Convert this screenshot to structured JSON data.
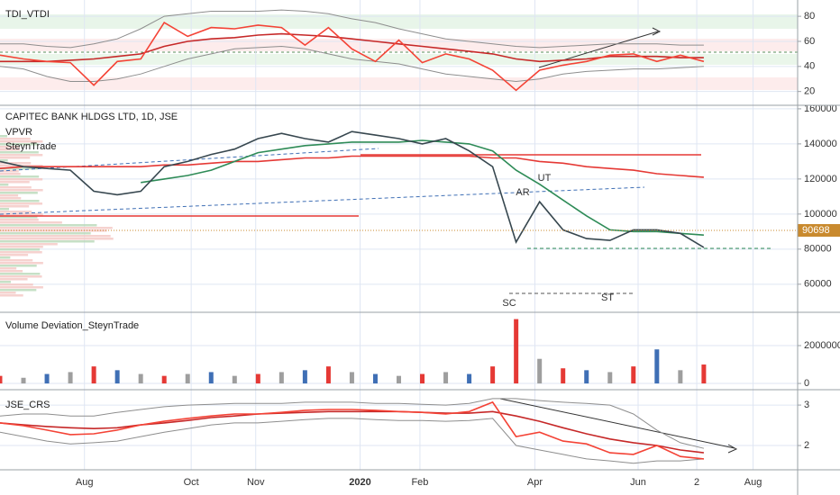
{
  "chart_data": [
    {
      "type": "line",
      "title": "TDI_VTDI",
      "ylim": [
        9,
        93
      ],
      "yticks": [
        20,
        40,
        60,
        80
      ],
      "series": [
        {
          "color": "#8e8e8e",
          "values": [
            58,
            58,
            56,
            55,
            58,
            62,
            70,
            80,
            82,
            84,
            84,
            84,
            85,
            84,
            82,
            78,
            75,
            70,
            66,
            62,
            60,
            58,
            56,
            55,
            56,
            57,
            58,
            58,
            58,
            57,
            57
          ]
        },
        {
          "color": "#8e8e8e",
          "values": [
            40,
            38,
            32,
            28,
            28,
            30,
            34,
            40,
            46,
            50,
            54,
            55,
            56,
            54,
            50,
            46,
            44,
            42,
            38,
            34,
            32,
            30,
            28,
            30,
            34,
            36,
            37,
            38,
            38,
            39,
            40
          ]
        },
        {
          "color": "#c62828",
          "values": [
            44,
            44,
            44,
            45,
            46,
            48,
            50,
            56,
            60,
            62,
            63,
            65,
            66,
            65,
            64,
            62,
            60,
            58,
            56,
            54,
            52,
            50,
            46,
            44,
            45,
            46,
            48,
            48,
            48,
            47,
            47
          ]
        },
        {
          "color": "#f44336",
          "values": [
            49,
            46,
            44,
            43,
            25,
            44,
            46,
            75,
            64,
            71,
            70,
            73,
            71,
            57,
            71,
            54,
            44,
            61,
            43,
            50,
            46,
            37,
            21,
            37,
            41,
            44,
            49,
            50,
            44,
            49,
            44
          ]
        }
      ]
    },
    {
      "type": "line",
      "title": "CAPITEC BANK HLDGS LTD, 1D, JSE",
      "indicators": [
        "VPVR",
        "SteynTrade"
      ],
      "annotations": [
        "AR",
        "UT",
        "SC",
        "ST"
      ],
      "last_price": 90698,
      "last_price_color": "#c98a2e",
      "ylim": [
        44000,
        162000
      ],
      "yticks": [
        60000,
        80000,
        100000,
        120000,
        140000,
        160000
      ],
      "series": [
        {
          "color": "#e53935",
          "values": [
            126000,
            127000,
            127000,
            127000,
            127000,
            127000,
            127000,
            128000,
            128000,
            129000,
            130000,
            130000,
            131000,
            132000,
            132000,
            133000,
            133000,
            133000,
            133000,
            133000,
            133000,
            132000,
            132000,
            130000,
            129000,
            127000,
            126000,
            125000,
            123000,
            122000,
            121000
          ]
        },
        {
          "color": "#2e8b57",
          "values": [
            null,
            null,
            null,
            null,
            null,
            null,
            118000,
            120000,
            122000,
            125000,
            130000,
            135000,
            137000,
            139000,
            140000,
            141000,
            141000,
            141000,
            142000,
            141000,
            140000,
            136000,
            125000,
            117000,
            108000,
            99000,
            91000,
            90000,
            90000,
            89000,
            88000
          ]
        },
        {
          "color": "#37474f",
          "values": [
            130000,
            127000,
            126000,
            125000,
            113000,
            111000,
            113000,
            127000,
            130000,
            134000,
            137000,
            143000,
            146000,
            143000,
            141000,
            147000,
            145000,
            143000,
            140000,
            143000,
            136000,
            127000,
            84000,
            107000,
            91000,
            86000,
            85000,
            91000,
            91000,
            89000,
            81000
          ]
        }
      ]
    },
    {
      "type": "bar",
      "title": "Volume Deviation_SteynTrade",
      "ylim": [
        -330000,
        3760000
      ],
      "yticks": [
        0,
        2000000
      ],
      "values": [
        400000,
        300000,
        500000,
        600000,
        900000,
        700000,
        500000,
        400000,
        500000,
        600000,
        400000,
        500000,
        600000,
        700000,
        900000,
        600000,
        500000,
        400000,
        500000,
        600000,
        500000,
        900000,
        3400000,
        1300000,
        800000,
        700000,
        600000,
        900000,
        1800000,
        700000,
        1000000
      ],
      "colors": [
        "#e53935",
        "#9e9e9e",
        "#3f6fb5",
        "#9e9e9e",
        "#e53935",
        "#3f6fb5",
        "#9e9e9e",
        "#e53935",
        "#9e9e9e",
        "#3f6fb5",
        "#9e9e9e",
        "#e53935",
        "#9e9e9e",
        "#3f6fb5",
        "#e53935",
        "#9e9e9e",
        "#3f6fb5",
        "#9e9e9e",
        "#e53935",
        "#9e9e9e",
        "#3f6fb5",
        "#e53935",
        "#e53935",
        "#9e9e9e",
        "#e53935",
        "#3f6fb5",
        "#9e9e9e",
        "#e53935",
        "#3f6fb5",
        "#9e9e9e",
        "#e53935"
      ]
    },
    {
      "type": "line",
      "title": "JSE_CRS",
      "ylim": [
        1.4,
        3.38
      ],
      "yticks": [
        2,
        3
      ],
      "xlim": [
        0,
        34
      ],
      "xticks": [
        {
          "value": 3.6,
          "label": "Aug"
        },
        {
          "value": 8.15,
          "label": "Oct"
        },
        {
          "value": 10.9,
          "label": "Nov"
        },
        {
          "value": 15.35,
          "label": "2020"
        },
        {
          "value": 17.9,
          "label": "Feb"
        },
        {
          "value": 22.8,
          "label": "Apr"
        },
        {
          "value": 27.2,
          "label": "Jun"
        },
        {
          "value": 29.7,
          "label": "2"
        },
        {
          "value": 32.1,
          "label": "Aug"
        }
      ],
      "series": [
        {
          "color": "#8e8e8e",
          "values": [
            2.73,
            2.78,
            2.78,
            2.73,
            2.73,
            2.82,
            2.89,
            2.96,
            3.0,
            3.02,
            3.04,
            3.04,
            3.04,
            3.07,
            3.07,
            3.07,
            3.04,
            3.04,
            3.02,
            3.0,
            3.04,
            3.16,
            3.16,
            3.11,
            3.07,
            3.04,
            3.0,
            2.78,
            2.38,
            2.07,
            1.93
          ]
        },
        {
          "color": "#8e8e8e",
          "values": [
            2.33,
            2.22,
            2.11,
            2.04,
            2.07,
            2.11,
            2.22,
            2.33,
            2.42,
            2.51,
            2.56,
            2.56,
            2.6,
            2.64,
            2.67,
            2.67,
            2.64,
            2.62,
            2.62,
            2.6,
            2.62,
            2.67,
            2.0,
            1.89,
            1.78,
            1.67,
            1.62,
            1.56,
            1.62,
            1.62,
            1.67
          ]
        },
        {
          "color": "#c62828",
          "values": [
            2.56,
            2.51,
            2.47,
            2.44,
            2.42,
            2.44,
            2.51,
            2.56,
            2.62,
            2.69,
            2.73,
            2.78,
            2.8,
            2.82,
            2.84,
            2.84,
            2.84,
            2.84,
            2.82,
            2.8,
            2.8,
            2.84,
            2.73,
            2.6,
            2.44,
            2.29,
            2.16,
            2.07,
            2.0,
            1.89,
            1.82
          ]
        },
        {
          "color": "#f44336",
          "values": [
            2.56,
            2.49,
            2.38,
            2.27,
            2.29,
            2.38,
            2.51,
            2.6,
            2.67,
            2.73,
            2.78,
            2.78,
            2.82,
            2.87,
            2.89,
            2.89,
            2.87,
            2.84,
            2.82,
            2.78,
            2.84,
            3.07,
            2.22,
            2.33,
            2.11,
            2.04,
            1.82,
            1.78,
            2.0,
            1.73,
            1.67
          ]
        }
      ]
    }
  ]
}
